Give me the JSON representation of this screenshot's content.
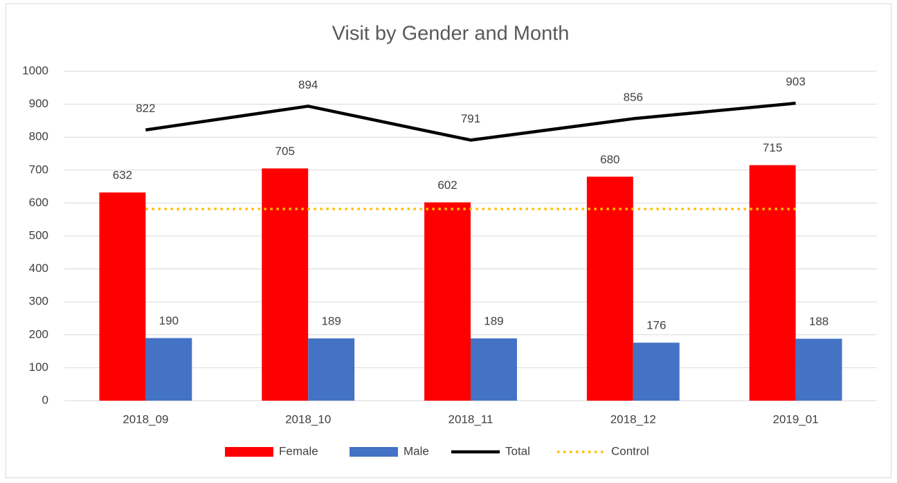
{
  "chart_data": {
    "type": "bar",
    "title": "Visit by Gender and Month",
    "categories": [
      "2018_09",
      "2018_10",
      "2018_11",
      "2018_12",
      "2019_01"
    ],
    "series": [
      {
        "name": "Female",
        "type": "bar",
        "color": "#ff0000",
        "values": [
          632,
          705,
          602,
          680,
          715
        ]
      },
      {
        "name": "Male",
        "type": "bar",
        "color": "#4472c4",
        "values": [
          190,
          189,
          189,
          176,
          188
        ]
      },
      {
        "name": "Total",
        "type": "line",
        "color": "#000000",
        "values": [
          822,
          894,
          791,
          856,
          903
        ]
      },
      {
        "name": "Control",
        "type": "line",
        "style": "dotted",
        "color": "#ffc000",
        "values": [
          582,
          582,
          582,
          582,
          582
        ]
      }
    ],
    "data_labels": [
      "Female",
      "Male",
      "Total"
    ],
    "ylim": [
      0,
      1000
    ],
    "yticks": [
      0,
      100,
      200,
      300,
      400,
      500,
      600,
      700,
      800,
      900,
      1000
    ],
    "grid": true,
    "legend": "bottom"
  }
}
